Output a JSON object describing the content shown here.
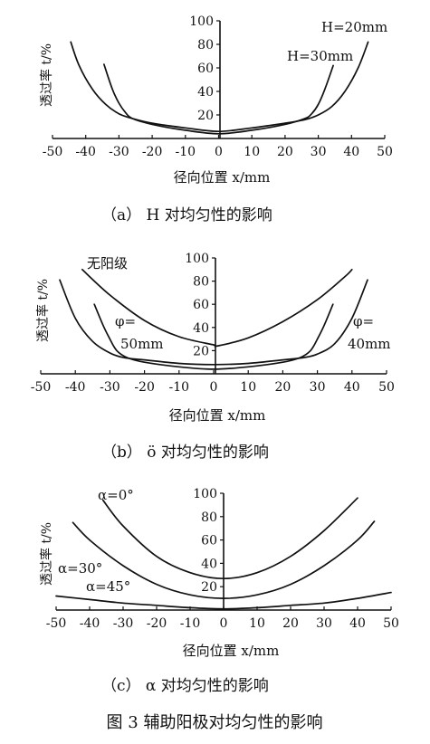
{
  "figure_caption": "图 3   辅助阳极对均匀性的影响",
  "chart_data": [
    {
      "type": "line",
      "panel_caption": "（a）  H 对均匀性的影响",
      "xlabel": "径向位置 x/mm",
      "ylabel": "透过率 t/%",
      "xlim": [
        -50,
        50
      ],
      "ylim": [
        0,
        100
      ],
      "xticks": [
        -50,
        -40,
        -30,
        -20,
        -10,
        0,
        10,
        20,
        30,
        40,
        50
      ],
      "yticks": [
        20,
        40,
        60,
        80,
        100
      ],
      "series": [
        {
          "name": "H=20mm",
          "x": [
            -44.5,
            -42,
            -38,
            -34,
            -30,
            -26,
            -20,
            -10,
            0,
            10,
            20,
            26,
            30,
            34,
            38,
            42,
            45
          ],
          "y": [
            82,
            62,
            42,
            29,
            21,
            17,
            13,
            9,
            6,
            9,
            13,
            16,
            20,
            27,
            40,
            60,
            82
          ]
        },
        {
          "name": "H=30mm",
          "x": [
            -34.5,
            -32,
            -30,
            -28,
            -26,
            -20,
            -10,
            0,
            10,
            20,
            26,
            28,
            30,
            32,
            34.5
          ],
          "y": [
            63,
            42,
            30,
            22,
            17,
            12,
            7,
            4,
            7,
            12,
            17,
            21,
            29,
            42,
            62
          ]
        }
      ]
    },
    {
      "type": "line",
      "panel_caption": "（b）  ö 对均匀性的影响",
      "xlabel": "径向位置 x/mm",
      "ylabel": "透过率 t/%",
      "xlim": [
        -50,
        50
      ],
      "ylim": [
        0,
        100
      ],
      "xticks": [
        -50,
        -40,
        -30,
        -20,
        -10,
        0,
        10,
        20,
        30,
        40,
        50
      ],
      "yticks": [
        20,
        40,
        60,
        80,
        100
      ],
      "annotations": [
        "无阳级",
        "φ=",
        "50mm",
        "φ=",
        "40mm"
      ],
      "series": [
        {
          "name": "无阳级",
          "x": [
            -38,
            -30,
            -20,
            -10,
            0,
            1,
            10,
            20,
            30,
            38,
            40
          ],
          "y": [
            90,
            68,
            46,
            32,
            25,
            24,
            31,
            45,
            64,
            84,
            90
          ]
        },
        {
          "name": "φ=50mm",
          "x": [
            -44.5,
            -40,
            -35,
            -30,
            -26,
            -20,
            -10,
            0,
            10,
            20,
            26,
            30,
            35,
            40,
            44.5
          ],
          "y": [
            81,
            48,
            28,
            18,
            14,
            12,
            9,
            8,
            9,
            12,
            14,
            17,
            26,
            48,
            81
          ]
        },
        {
          "name": "φ=40mm",
          "x": [
            -34.5,
            -32,
            -30,
            -28,
            -25,
            -20,
            -10,
            0,
            10,
            20,
            25,
            28,
            30,
            32,
            34.5
          ],
          "y": [
            60,
            42,
            30,
            20,
            14,
            10,
            6,
            4,
            6,
            10,
            14,
            20,
            30,
            42,
            60
          ]
        }
      ]
    },
    {
      "type": "line",
      "panel_caption": "（c）  α 对均匀性的影响",
      "xlabel": "径向位置 x/mm",
      "ylabel": "透过率 t/%",
      "xlim": [
        -50,
        50
      ],
      "ylim": [
        0,
        100
      ],
      "xticks": [
        -50,
        -40,
        -30,
        -20,
        -10,
        0,
        10,
        20,
        30,
        40,
        50
      ],
      "yticks": [
        20,
        40,
        60,
        80,
        100
      ],
      "series": [
        {
          "name": "α=0°",
          "x": [
            -36,
            -30,
            -20,
            -10,
            0,
            10,
            20,
            30,
            40
          ],
          "y": [
            94,
            72,
            46,
            32,
            27,
            32,
            46,
            68,
            96
          ]
        },
        {
          "name": "α=30°",
          "x": [
            -45,
            -40,
            -30,
            -20,
            -10,
            0,
            10,
            20,
            30,
            40,
            45
          ],
          "y": [
            75,
            60,
            38,
            22,
            13,
            10,
            13,
            22,
            38,
            60,
            76
          ]
        },
        {
          "name": "α=45°",
          "x": [
            -50,
            -40,
            -30,
            -20,
            -10,
            0,
            10,
            20,
            30,
            40,
            50
          ],
          "y": [
            12,
            9,
            6,
            4,
            2,
            1,
            2,
            4,
            6,
            10,
            15
          ]
        }
      ]
    }
  ]
}
